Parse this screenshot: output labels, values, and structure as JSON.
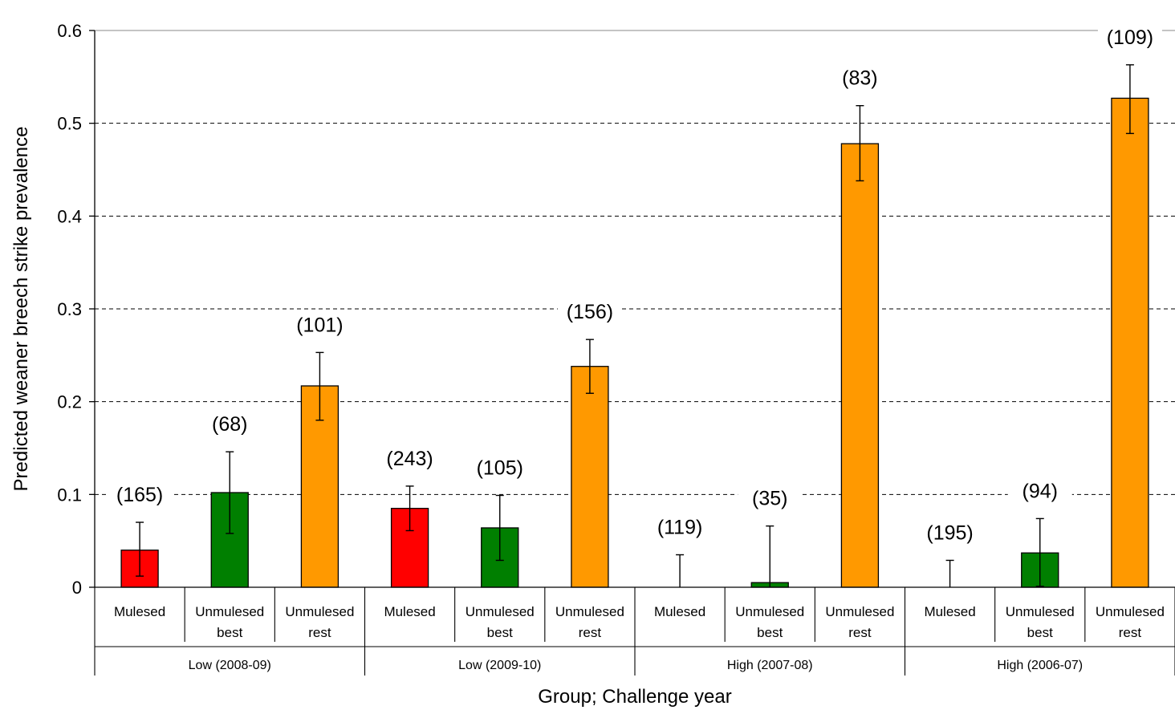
{
  "chart_data": {
    "type": "bar",
    "title": "",
    "xlabel": "Group; Challenge year",
    "ylabel": "Predicted weaner breech strike prevalence",
    "ylim": [
      0,
      0.6
    ],
    "yticks": [
      "0",
      "0.1",
      "0.2",
      "0.3",
      "0.4",
      "0.5",
      "0.6"
    ],
    "grid": "horizontal dashed",
    "legend": "none",
    "colors": {
      "Mulesed": "#ff0000",
      "Unmulesed best": "#007f00",
      "Unmulesed rest": "#ff9900"
    },
    "groups": [
      {
        "label": "Low (2008-09)",
        "bars": [
          {
            "line1": "Mulesed",
            "line2": "",
            "color_key": "Mulesed",
            "value": 0.04,
            "err_low": 0.012,
            "err_high": 0.07,
            "n_label": "(165)"
          },
          {
            "line1": "Unmulesed",
            "line2": "best",
            "color_key": "Unmulesed best",
            "value": 0.102,
            "err_low": 0.058,
            "err_high": 0.146,
            "n_label": "(68)"
          },
          {
            "line1": "Unmulesed",
            "line2": "rest",
            "color_key": "Unmulesed rest",
            "value": 0.217,
            "err_low": 0.18,
            "err_high": 0.253,
            "n_label": "(101)"
          }
        ]
      },
      {
        "label": "Low (2009-10)",
        "bars": [
          {
            "line1": "Mulesed",
            "line2": "",
            "color_key": "Mulesed",
            "value": 0.085,
            "err_low": 0.061,
            "err_high": 0.109,
            "n_label": "(243)"
          },
          {
            "line1": "Unmulesed",
            "line2": "best",
            "color_key": "Unmulesed best",
            "value": 0.064,
            "err_low": 0.029,
            "err_high": 0.099,
            "n_label": "(105)"
          },
          {
            "line1": "Unmulesed",
            "line2": "rest",
            "color_key": "Unmulesed rest",
            "value": 0.238,
            "err_low": 0.209,
            "err_high": 0.267,
            "n_label": "(156)"
          }
        ]
      },
      {
        "label": "High (2007-08)",
        "bars": [
          {
            "line1": "Mulesed",
            "line2": "",
            "color_key": "Mulesed",
            "value": 0.0,
            "err_low": 0.0,
            "err_high": 0.035,
            "n_label": "(119)"
          },
          {
            "line1": "Unmulesed",
            "line2": "best",
            "color_key": "Unmulesed best",
            "value": 0.005,
            "err_low": 0.0,
            "err_high": 0.066,
            "n_label": "(35)"
          },
          {
            "line1": "Unmulesed",
            "line2": "rest",
            "color_key": "Unmulesed rest",
            "value": 0.478,
            "err_low": 0.438,
            "err_high": 0.519,
            "n_label": "(83)"
          }
        ]
      },
      {
        "label": "High (2006-07)",
        "bars": [
          {
            "line1": "Mulesed",
            "line2": "",
            "color_key": "Mulesed",
            "value": 0.0,
            "err_low": 0.0,
            "err_high": 0.029,
            "n_label": "(195)"
          },
          {
            "line1": "Unmulesed",
            "line2": "best",
            "color_key": "Unmulesed best",
            "value": 0.037,
            "err_low": 0.001,
            "err_high": 0.074,
            "n_label": "(94)"
          },
          {
            "line1": "Unmulesed",
            "line2": "rest",
            "color_key": "Unmulesed rest",
            "value": 0.527,
            "err_low": 0.489,
            "err_high": 0.563,
            "n_label": "(109)"
          }
        ]
      }
    ]
  }
}
